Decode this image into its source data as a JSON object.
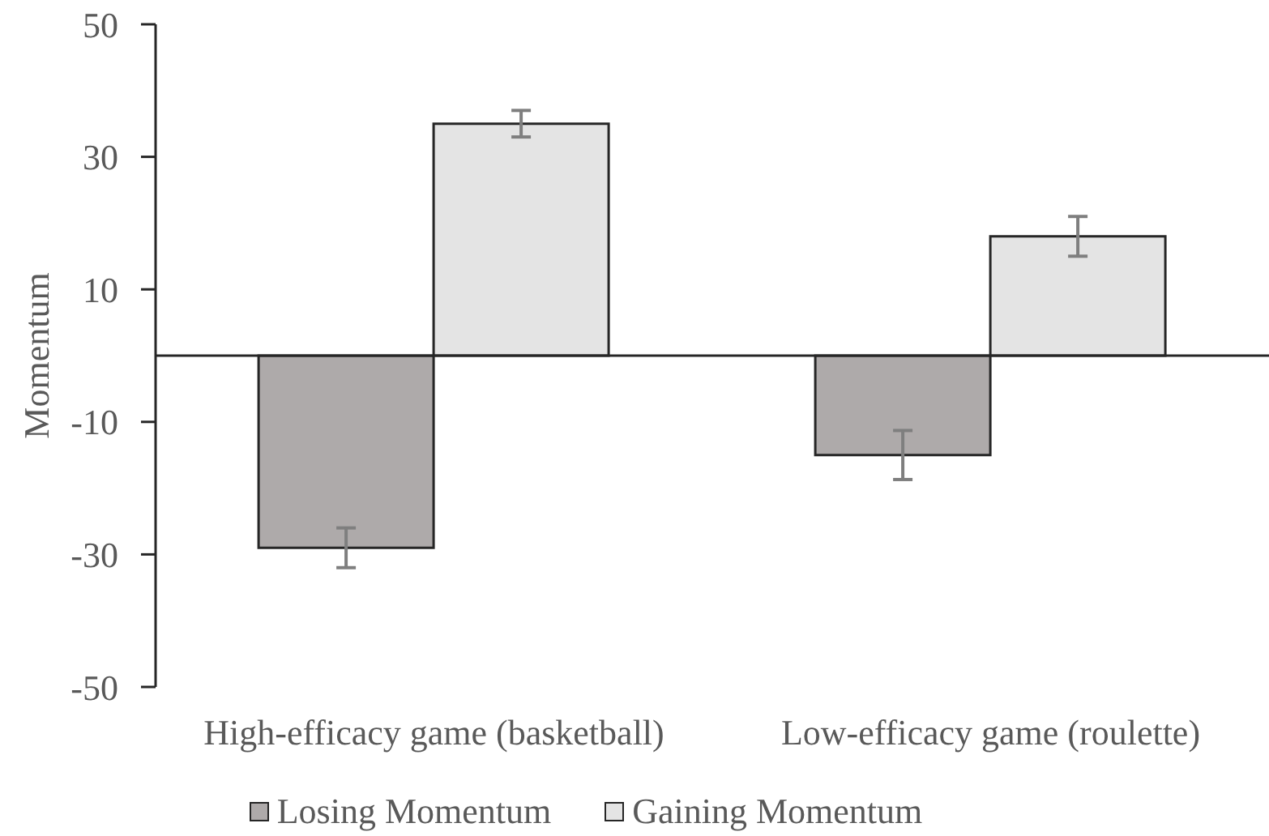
{
  "chart_data": {
    "type": "bar",
    "ylabel": "Momentum",
    "categories": [
      "High-efficacy game (basketball)",
      "Low-efficacy game (roulette)"
    ],
    "series": [
      {
        "name": "Losing Momentum",
        "color": "#aeaaaa",
        "values": [
          -29,
          -15
        ],
        "errors": [
          3,
          3.7
        ]
      },
      {
        "name": "Gaining Momentum",
        "color": "#e4e4e4",
        "values": [
          35,
          18
        ],
        "errors": [
          2,
          3
        ]
      }
    ],
    "ylim": [
      -50,
      50
    ],
    "yticks": [
      -50,
      -30,
      -10,
      10,
      30,
      50
    ],
    "legend": "bottom"
  }
}
